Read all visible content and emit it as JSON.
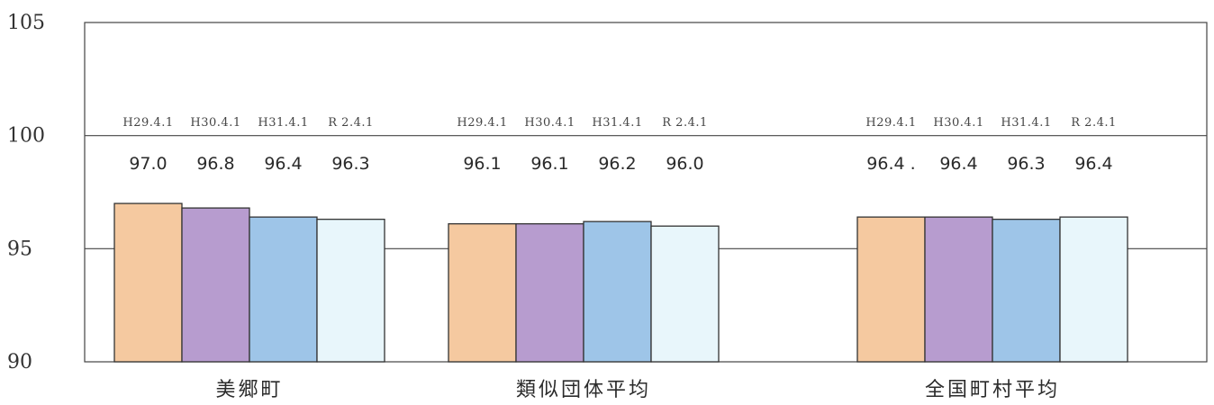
{
  "chart_data": {
    "type": "bar",
    "title": "",
    "xlabel": "",
    "ylabel": "",
    "ylim": [
      90,
      105
    ],
    "yticks": [
      "105",
      "100",
      "95",
      "90"
    ],
    "ytick_values": [
      105,
      100,
      95,
      90
    ],
    "grid": "horizontal lines at 95 and 100",
    "categories": [
      "美郷町",
      "類似団体平均",
      "全国町村平均"
    ],
    "series": [
      {
        "name": "H29.4.1",
        "color": "#f5c9a0",
        "values": [
          97.0,
          96.1,
          96.4
        ]
      },
      {
        "name": "H30.4.1",
        "color": "#b79ccf",
        "values": [
          96.8,
          96.1,
          96.4
        ]
      },
      {
        "name": "H31.4.1",
        "color": "#9ec5e8",
        "values": [
          96.4,
          96.2,
          96.3
        ]
      },
      {
        "name": "R 2.4.1",
        "color": "#e8f6fb",
        "values": [
          96.3,
          96.0,
          96.4
        ]
      }
    ],
    "data_labels": [
      [
        "97.0",
        "96.8",
        "96.4",
        "96.3"
      ],
      [
        "96.1",
        "96.1",
        "96.2",
        "96.0"
      ],
      [
        "96.4 .",
        "96.4",
        "96.3",
        "96.4"
      ]
    ]
  }
}
